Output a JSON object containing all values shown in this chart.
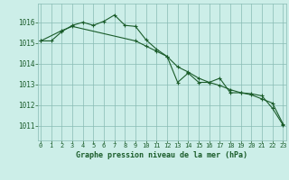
{
  "title": "Graphe pression niveau de la mer (hPa)",
  "background_color": "#cceee8",
  "grid_color": "#88bbb4",
  "line_color": "#1a5c2a",
  "fig_bg": "#cceee8",
  "x_ticks": [
    0,
    1,
    2,
    3,
    4,
    5,
    6,
    7,
    8,
    9,
    10,
    11,
    12,
    13,
    14,
    15,
    16,
    17,
    18,
    19,
    20,
    21,
    22,
    23
  ],
  "y_ticks": [
    1011,
    1012,
    1013,
    1014,
    1015,
    1016
  ],
  "ylim": [
    1010.3,
    1016.9
  ],
  "xlim": [
    -0.3,
    23.3
  ],
  "line1_x": [
    0,
    1,
    2,
    3,
    4,
    5,
    6,
    7,
    8,
    9,
    10,
    11,
    12,
    13,
    14,
    15,
    16,
    17,
    18,
    19,
    20,
    21,
    22,
    23
  ],
  "line1_y": [
    1015.1,
    1015.1,
    1015.55,
    1015.85,
    1016.0,
    1015.85,
    1016.05,
    1016.35,
    1015.85,
    1015.8,
    1015.15,
    1014.7,
    1014.35,
    1013.1,
    1013.55,
    1013.1,
    1013.1,
    1013.3,
    1012.6,
    1012.6,
    1012.55,
    1012.45,
    1011.85,
    1011.05
  ],
  "line2_x": [
    0,
    2,
    3,
    9,
    10,
    11,
    12,
    13,
    14,
    15,
    16,
    17,
    18,
    19,
    20,
    21,
    22,
    23
  ],
  "line2_y": [
    1015.1,
    1015.6,
    1015.8,
    1015.1,
    1014.85,
    1014.6,
    1014.35,
    1013.85,
    1013.6,
    1013.3,
    1013.1,
    1012.95,
    1012.75,
    1012.6,
    1012.5,
    1012.3,
    1012.1,
    1011.1
  ]
}
